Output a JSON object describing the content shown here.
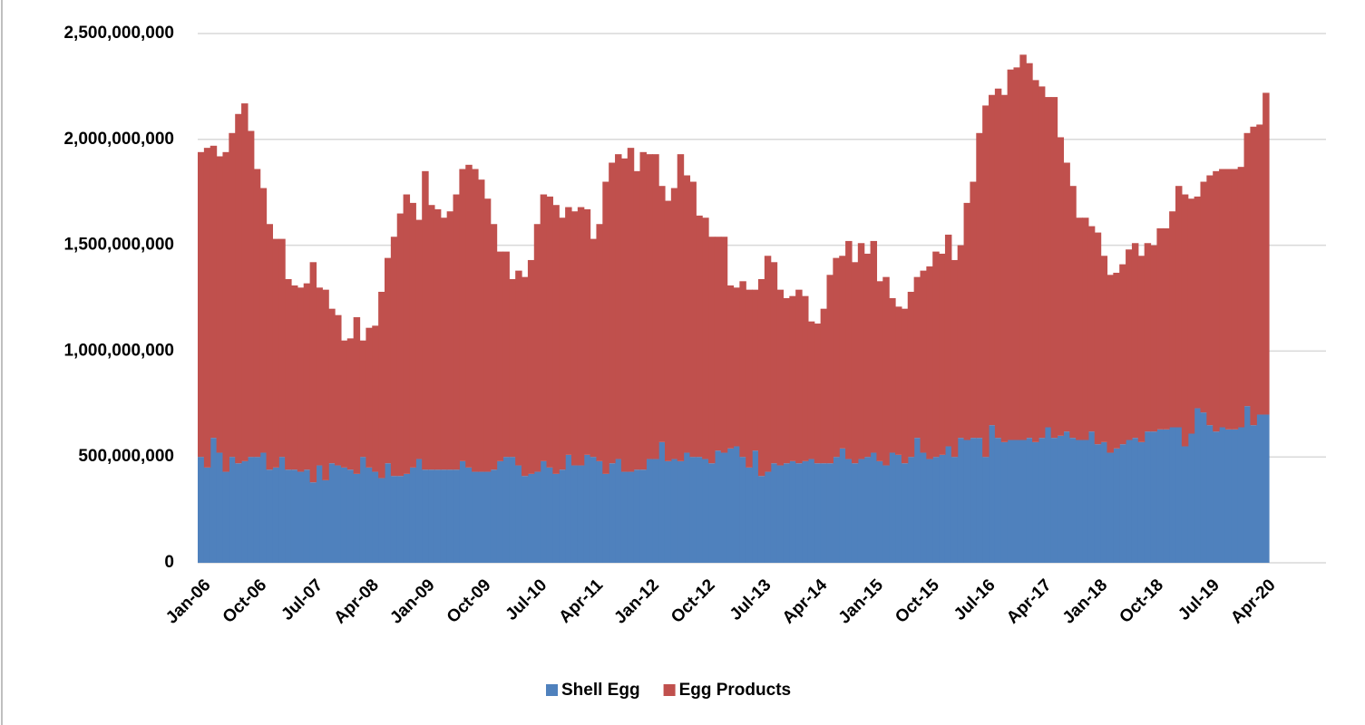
{
  "chart_data": {
    "type": "stacked_bar",
    "categories": [
      "Jan-06",
      null,
      null,
      null,
      null,
      null,
      null,
      null,
      null,
      "Oct-06",
      null,
      null,
      null,
      null,
      null,
      null,
      null,
      null,
      "Jul-07",
      null,
      null,
      null,
      null,
      null,
      null,
      null,
      null,
      "Apr-08",
      null,
      null,
      null,
      null,
      null,
      null,
      null,
      null,
      "Jan-09",
      null,
      null,
      null,
      null,
      null,
      null,
      null,
      null,
      "Oct-09",
      null,
      null,
      null,
      null,
      null,
      null,
      null,
      null,
      "Jul-10",
      null,
      null,
      null,
      null,
      null,
      null,
      null,
      null,
      "Apr-11",
      null,
      null,
      null,
      null,
      null,
      null,
      null,
      null,
      "Jan-12",
      null,
      null,
      null,
      null,
      null,
      null,
      null,
      null,
      "Oct-12",
      null,
      null,
      null,
      null,
      null,
      null,
      null,
      null,
      "Jul-13",
      null,
      null,
      null,
      null,
      null,
      null,
      null,
      null,
      "Apr-14",
      null,
      null,
      null,
      null,
      null,
      null,
      null,
      null,
      "Jan-15",
      null,
      null,
      null,
      null,
      null,
      null,
      null,
      null,
      "Oct-15",
      null,
      null,
      null,
      null,
      null,
      null,
      null,
      null,
      "Jul-16",
      null,
      null,
      null,
      null,
      null,
      null,
      null,
      null,
      "Apr-17",
      null,
      null,
      null,
      null,
      null,
      null,
      null,
      null,
      "Jan-18",
      null,
      null,
      null,
      null,
      null,
      null,
      null,
      null,
      "Oct-18",
      null,
      null,
      null,
      null,
      null,
      null,
      null,
      null,
      "Jul-19",
      null,
      null,
      null,
      null,
      null,
      null,
      null,
      null,
      "Apr-20"
    ],
    "series": [
      {
        "name": "Shell Egg",
        "color": "#4f81bd",
        "values": [
          500000000.0,
          450000000.0,
          590000000.0,
          520000000.0,
          430000000.0,
          500000000.0,
          470000000.0,
          480000000.0,
          500000000.0,
          500000000.0,
          520000000.0,
          440000000.0,
          450000000.0,
          500000000.0,
          440000000.0,
          440000000.0,
          430000000.0,
          440000000.0,
          380000000.0,
          460000000.0,
          390000000.0,
          470000000.0,
          460000000.0,
          450000000.0,
          440000000.0,
          420000000.0,
          500000000.0,
          450000000.0,
          430000000.0,
          400000000.0,
          470000000.0,
          410000000.0,
          410000000.0,
          420000000.0,
          450000000.0,
          490000000.0,
          440000000.0,
          440000000.0,
          440000000.0,
          440000000.0,
          440000000.0,
          440000000.0,
          480000000.0,
          450000000.0,
          430000000.0,
          430000000.0,
          430000000.0,
          440000000.0,
          480000000.0,
          500000000.0,
          500000000.0,
          460000000.0,
          410000000.0,
          420000000.0,
          430000000.0,
          480000000.0,
          450000000.0,
          420000000.0,
          440000000.0,
          510000000.0,
          460000000.0,
          460000000.0,
          510000000.0,
          500000000.0,
          480000000.0,
          420000000.0,
          470000000.0,
          490000000.0,
          430000000.0,
          430000000.0,
          440000000.0,
          440000000.0,
          490000000.0,
          490000000.0,
          570000000.0,
          480000000.0,
          490000000.0,
          480000000.0,
          520000000.0,
          500000000.0,
          500000000.0,
          490000000.0,
          470000000.0,
          530000000.0,
          520000000.0,
          540000000.0,
          550000000.0,
          500000000.0,
          450000000.0,
          530000000.0,
          410000000.0,
          430000000.0,
          470000000.0,
          460000000.0,
          470000000.0,
          480000000.0,
          470000000.0,
          480000000.0,
          490000000.0,
          470000000.0,
          470000000.0,
          470000000.0,
          500000000.0,
          540000000.0,
          490000000.0,
          470000000.0,
          490000000.0,
          500000000.0,
          520000000.0,
          480000000.0,
          460000000.0,
          520000000.0,
          510000000.0,
          470000000.0,
          500000000.0,
          590000000.0,
          520000000.0,
          490000000.0,
          500000000.0,
          510000000.0,
          550000000.0,
          500000000.0,
          590000000.0,
          580000000.0,
          590000000.0,
          590000000.0,
          500000000.0,
          650000000.0,
          590000000.0,
          570000000.0,
          580000000.0,
          580000000.0,
          580000000.0,
          590000000.0,
          570000000.0,
          590000000.0,
          640000000.0,
          590000000.0,
          600000000.0,
          620000000.0,
          590000000.0,
          580000000.0,
          580000000.0,
          620000000.0,
          560000000.0,
          570000000.0,
          520000000.0,
          540000000.0,
          560000000.0,
          580000000.0,
          590000000.0,
          570000000.0,
          620000000.0,
          620000000.0,
          630000000.0,
          630000000.0,
          640000000.0,
          640000000.0,
          550000000.0,
          610000000.0,
          730000000.0,
          710000000.0,
          650000000.0,
          620000000.0,
          640000000.0,
          630000000.0,
          630000000.0,
          640000000.0,
          740000000.0,
          650000000.0,
          700000000.0,
          700000000.0
        ]
      },
      {
        "name": "Egg Products",
        "color": "#c0504d",
        "values": [
          1440000000.0,
          1510000000.0,
          1380000000.0,
          1400000000.0,
          1510000000.0,
          1530000000.0,
          1650000000.0,
          1690000000.0,
          1540000000.0,
          1360000000.0,
          1250000000.0,
          1160000000.0,
          1080000000.0,
          1030000000.0,
          900000000.0,
          870000000.0,
          870000000.0,
          880000000.0,
          1040000000.0,
          840000000.0,
          900000000.0,
          730000000.0,
          710000000.0,
          600000000.0,
          620000000.0,
          740000000.0,
          550000000.0,
          660000000.0,
          690000000.0,
          880000000.0,
          970000000.0,
          1130000000.0,
          1240000000.0,
          1320000000.0,
          1250000000.0,
          1130000000.0,
          1410000000.0,
          1250000000.0,
          1230000000.0,
          1190000000.0,
          1220000000.0,
          1300000000.0,
          1380000000.0,
          1430000000.0,
          1430000000.0,
          1380000000.0,
          1290000000.0,
          1160000000.0,
          990000000.0,
          970000000.0,
          840000000.0,
          920000000.0,
          940000000.0,
          1010000000.0,
          1170000000.0,
          1260000000.0,
          1280000000.0,
          1270000000.0,
          1190000000.0,
          1170000000.0,
          1200000000.0,
          1220000000.0,
          1160000000.0,
          1030000000.0,
          1120000000.0,
          1380000000.0,
          1420000000.0,
          1440000000.0,
          1480000000.0,
          1530000000.0,
          1410000000.0,
          1500000000.0,
          1440000000.0,
          1440000000.0,
          1210000000.0,
          1230000000.0,
          1280000000.0,
          1450000000.0,
          1310000000.0,
          1300000000.0,
          1140000000.0,
          1140000000.0,
          1070000000.0,
          1010000000.0,
          1020000000.0,
          770000000.0,
          750000000.0,
          830000000.0,
          840000000.0,
          760000000.0,
          930000000.0,
          1020000000.0,
          950000000.0,
          830000000.0,
          780000000.0,
          780000000.0,
          820000000.0,
          780000000.0,
          650000000.0,
          660000000.0,
          730000000.0,
          890000000.0,
          940000000.0,
          910000000.0,
          1030000000.0,
          950000000.0,
          1020000000.0,
          960000000.0,
          1000000000.0,
          850000000.0,
          890000000.0,
          730000000.0,
          700000000.0,
          730000000.0,
          780000000.0,
          760000000.0,
          860000000.0,
          910000000.0,
          970000000.0,
          950000000.0,
          1000000000.0,
          930000000.0,
          910000000.0,
          1120000000.0,
          1210000000.0,
          1440000000.0,
          1660000000.0,
          1560000000.0,
          1650000000.0,
          1640000000.0,
          1750000000.0,
          1760000000.0,
          1820000000.0,
          1770000000.0,
          1710000000.0,
          1660000000.0,
          1560000000.0,
          1610000000.0,
          1410000000.0,
          1270000000.0,
          1190000000.0,
          1050000000.0,
          1050000000.0,
          970000000.0,
          1000000000.0,
          880000000.0,
          840000000.0,
          830000000.0,
          850000000.0,
          900000000.0,
          920000000.0,
          880000000.0,
          890000000.0,
          880000000.0,
          950000000.0,
          950000000.0,
          1020000000.0,
          1140000000.0,
          1190000000.0,
          1110000000.0,
          1000000000.0,
          1090000000.0,
          1180000000.0,
          1230000000.0,
          1220000000.0,
          1230000000.0,
          1230000000.0,
          1230000000.0,
          1290000000.0,
          1410000000.0,
          1370000000.0,
          1520000000.0
        ]
      }
    ],
    "ylim": [
      0,
      2500000000
    ],
    "yticks": [
      0,
      {
        "value": 500000000,
        "label": "500,000,000"
      },
      {
        "value": 1000000000,
        "label": "1,000,000,000"
      },
      {
        "value": 1500000000,
        "label": "1,500,000,000"
      },
      {
        "value": 2000000000,
        "label": "2,000,000,000"
      },
      {
        "value": 2500000000,
        "label": "2,500,000,000"
      }
    ],
    "grid": true,
    "legend": "bottom"
  }
}
